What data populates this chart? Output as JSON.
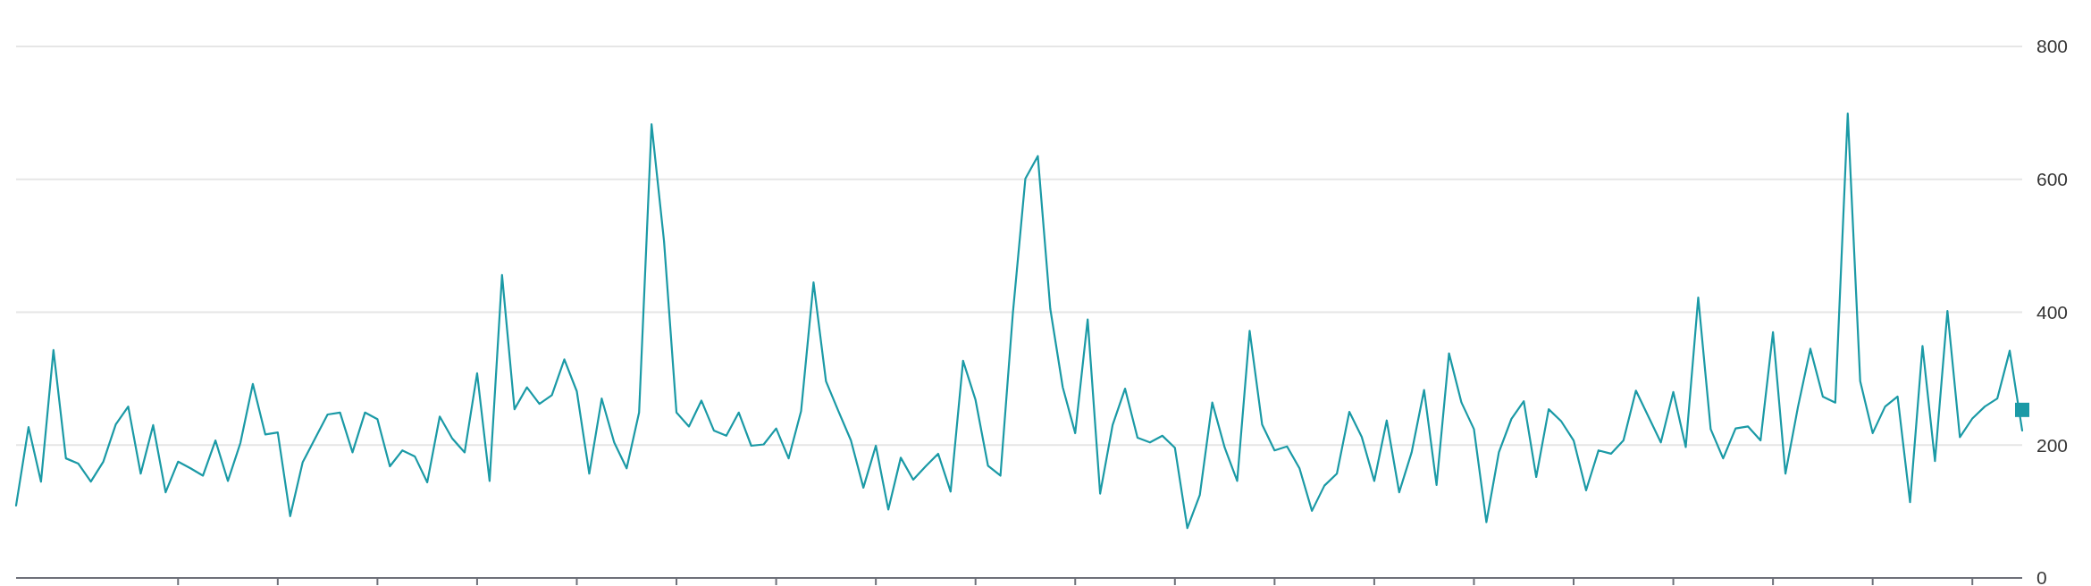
{
  "chart_data": {
    "type": "line",
    "categories": [
      null,
      null,
      null,
      null,
      null,
      null,
      null,
      null,
      null,
      null,
      null,
      null,
      null,
      null,
      null,
      null,
      null,
      null,
      null,
      null,
      null,
      null,
      null,
      null,
      null,
      null,
      null,
      null,
      null,
      null,
      null,
      null,
      null,
      null,
      null,
      null,
      null,
      null,
      null,
      null,
      null,
      null,
      null,
      null,
      null,
      null,
      null,
      null,
      null,
      null,
      null,
      null,
      null,
      null,
      null,
      null,
      null,
      null,
      null,
      null,
      null,
      null,
      null,
      null,
      null,
      null,
      null,
      null,
      null,
      null,
      null,
      null,
      null,
      null,
      null,
      null,
      null,
      null,
      null,
      null,
      null,
      null,
      null,
      null,
      null,
      null,
      null,
      null,
      null,
      null,
      null,
      null,
      null,
      null,
      null,
      null,
      null,
      null,
      null,
      null,
      null,
      null,
      null,
      null,
      null,
      null,
      null,
      null,
      null,
      null,
      null,
      null,
      null,
      null,
      null,
      null,
      null,
      null,
      null,
      null,
      null,
      null,
      null,
      null,
      null,
      null,
      null,
      null,
      null,
      null,
      null,
      null,
      null,
      null,
      null,
      null,
      null,
      null,
      null,
      null,
      null,
      null,
      null,
      null,
      null,
      null,
      null,
      null,
      null,
      null,
      null,
      null,
      null,
      null,
      null,
      null,
      null,
      null,
      null,
      null,
      null,
      null
    ],
    "ylim": [
      0,
      800
    ],
    "yticks": [
      0,
      200,
      400,
      600,
      800
    ],
    "grid": "y",
    "series": [
      {
        "color": "#1b9aa6",
        "values": [
          109,
          227,
          145,
          343,
          180,
          172,
          145,
          175,
          231,
          258,
          157,
          230,
          129,
          175,
          165,
          154,
          207,
          146,
          203,
          292,
          216,
          219,
          93,
          174,
          210,
          246,
          249,
          189,
          249,
          239,
          168,
          192,
          183,
          144,
          243,
          210,
          189,
          308,
          146,
          456,
          254,
          287,
          262,
          275,
          329,
          281,
          157,
          270,
          204,
          165,
          249,
          683,
          507,
          249,
          228,
          267,
          222,
          214,
          249,
          199,
          201,
          225,
          180,
          251,
          445,
          296,
          251,
          207,
          136,
          199,
          103,
          181,
          148,
          168,
          187,
          130,
          327,
          268,
          169,
          154,
          399,
          601,
          635,
          405,
          287,
          218,
          389,
          127,
          230,
          285,
          211,
          204,
          214,
          196,
          75,
          125,
          264,
          196,
          146,
          372,
          231,
          192,
          198,
          165,
          101,
          139,
          157,
          250,
          212,
          146,
          237,
          129,
          189,
          283,
          140,
          338,
          264,
          224,
          84,
          189,
          239,
          266,
          152,
          254,
          236,
          207,
          132,
          192,
          187,
          207,
          282,
          243,
          204,
          280,
          197,
          422,
          224,
          180,
          225,
          228,
          207,
          370,
          157,
          257,
          345,
          273,
          264,
          699,
          296,
          218,
          258,
          273,
          114,
          349,
          176,
          402,
          212,
          240,
          258,
          270,
          342,
          222
        ]
      }
    ]
  }
}
